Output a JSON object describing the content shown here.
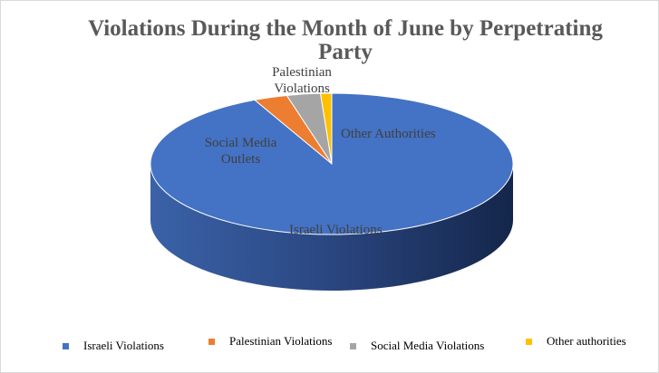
{
  "chart_data": {
    "type": "pie",
    "style": "3d",
    "title": "Violations During the Month of June by Perpetrating Party",
    "slices": [
      {
        "name": "Israeli Violations",
        "value": 93,
        "color": "#4472c4",
        "data_label": "Israeli Violations"
      },
      {
        "name": "Palestinian Violations",
        "value": 3,
        "color": "#ed7d31",
        "data_label": "Palestinian Violations"
      },
      {
        "name": "Social Media Violations",
        "value": 3,
        "color": "#a5a5a5",
        "data_label": "Social Media Outlets"
      },
      {
        "name": "Other authorities",
        "value": 1,
        "color": "#ffc000",
        "data_label": "Other Authorities"
      }
    ],
    "legend_position": "bottom"
  }
}
